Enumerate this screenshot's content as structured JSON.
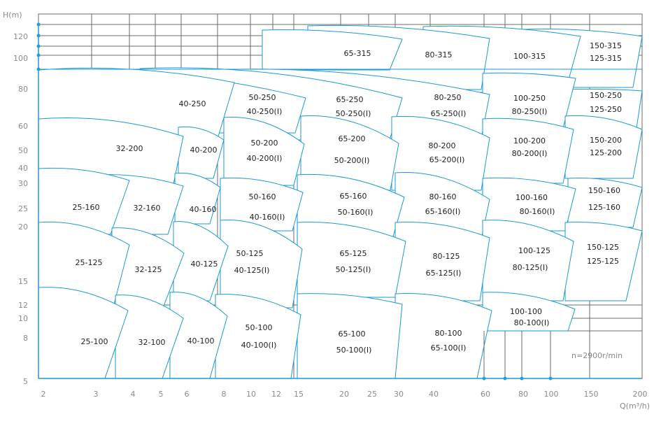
{
  "axes": {
    "y_title": "H(m)",
    "x_title": "Q(m³/h)",
    "y_ticks": [
      "120",
      "100",
      "80",
      "60",
      "50",
      "40",
      "30",
      "25",
      "20",
      "15",
      "12",
      "10",
      "8",
      "5"
    ],
    "x_ticks": [
      "2",
      "3",
      "4",
      "5",
      "6",
      "8",
      "10",
      "12",
      "15",
      "20",
      "25",
      "30",
      "40",
      "60",
      "80",
      "100",
      "150",
      "200"
    ],
    "y_scale": "log",
    "x_scale": "log"
  },
  "note": "n=2900r/min",
  "colors": {
    "curve": "#1a9ad6",
    "grid": "#6b6b6b",
    "tick_text": "#8a8a8a",
    "label_text": "#222222"
  },
  "tiles": [
    {
      "labels": [
        "150-315",
        "125-315"
      ]
    },
    {
      "labels": [
        "100-315"
      ]
    },
    {
      "labels": [
        "80-315"
      ]
    },
    {
      "labels": [
        "65-315"
      ]
    },
    {
      "labels": [
        "150-250",
        "125-250"
      ]
    },
    {
      "labels": [
        "100-250",
        "80-250(I)"
      ]
    },
    {
      "labels": [
        "80-250",
        "65-250(I)"
      ]
    },
    {
      "labels": [
        "65-250",
        "50-250(I)"
      ]
    },
    {
      "labels": [
        "50-250",
        "40-250(I)"
      ]
    },
    {
      "labels": [
        "40-250"
      ]
    },
    {
      "labels": [
        "150-200",
        "125-200"
      ]
    },
    {
      "labels": [
        "100-200",
        "80-200(I)"
      ]
    },
    {
      "labels": [
        "80-200",
        "65-200(I)"
      ]
    },
    {
      "labels": [
        "65-200",
        "50-200(I)"
      ]
    },
    {
      "labels": [
        "50-200",
        "40-200(I)"
      ]
    },
    {
      "labels": [
        "40-200"
      ]
    },
    {
      "labels": [
        "32-200"
      ]
    },
    {
      "labels": [
        "150-160",
        "125-160"
      ]
    },
    {
      "labels": [
        "100-160",
        "80-160(I)"
      ]
    },
    {
      "labels": [
        "80-160",
        "65-160(I)"
      ]
    },
    {
      "labels": [
        "65-160",
        "50-160(I)"
      ]
    },
    {
      "labels": [
        "50-160",
        "40-160(I)"
      ]
    },
    {
      "labels": [
        "40-160"
      ]
    },
    {
      "labels": [
        "32-160"
      ]
    },
    {
      "labels": [
        "25-160"
      ]
    },
    {
      "labels": [
        "150-125",
        "125-125"
      ]
    },
    {
      "labels": [
        "100-125",
        "80-125(I)"
      ]
    },
    {
      "labels": [
        "80-125",
        "65-125(I)"
      ]
    },
    {
      "labels": [
        "65-125",
        "50-125(I)"
      ]
    },
    {
      "labels": [
        "50-125",
        "40-125(I)"
      ]
    },
    {
      "labels": [
        "40-125"
      ]
    },
    {
      "labels": [
        "32-125"
      ]
    },
    {
      "labels": [
        "25-125"
      ]
    },
    {
      "labels": [
        "100-100",
        "80-100(I)"
      ]
    },
    {
      "labels": [
        "80-100",
        "65-100(I)"
      ]
    },
    {
      "labels": [
        "65-100",
        "50-100(I)"
      ]
    },
    {
      "labels": [
        "50-100",
        "40-100(I)"
      ]
    },
    {
      "labels": [
        "40-100"
      ]
    },
    {
      "labels": [
        "32-100"
      ]
    },
    {
      "labels": [
        "25-100"
      ]
    }
  ]
}
